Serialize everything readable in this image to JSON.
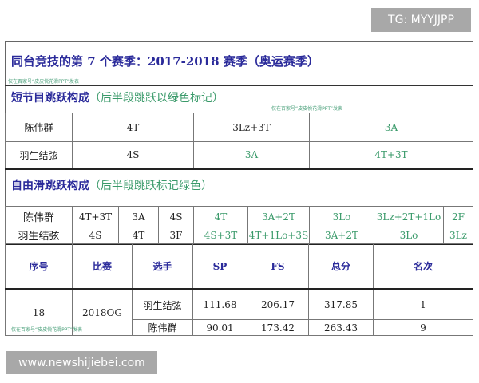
{
  "watermark_top": "TG: MYYJJPP",
  "watermark_bottom": "www.newshijiebei.com",
  "doc_watermark": "仅在百家号“皮皮悦花滑PPT”发表",
  "title": "同台竞技的第 7 个赛季：2017-2018 赛季（奥运赛季）",
  "short": {
    "heading": "短节目跳跃构成",
    "note": "（后半段跳跃以绿色标记）",
    "rows": [
      {
        "name": "陈伟群",
        "jumps": [
          "4T",
          "3Lz+3T",
          "3A"
        ]
      },
      {
        "name": "羽生结弦",
        "jumps": [
          "4S",
          "3A",
          "4T+3T"
        ]
      }
    ]
  },
  "free": {
    "heading": "自由滑跳跃构成",
    "note": "（后半段跳跃标记绿色）",
    "rows": [
      {
        "name": "陈伟群",
        "jumps": [
          "4T+3T",
          "3A",
          "4S",
          "4T",
          "3A+2T",
          "3Lo",
          "3Lz+2T+1Lo",
          "2F"
        ]
      },
      {
        "name": "羽生结弦",
        "jumps": [
          "4S",
          "4T",
          "3F",
          "4S+3T",
          "4T+1Lo+3S",
          "3A+2T",
          "3Lo",
          "3Lz"
        ]
      }
    ]
  },
  "results": {
    "headers": [
      "序号",
      "比赛",
      "选手",
      "SP",
      "FS",
      "总分",
      "名次"
    ],
    "no": "18",
    "event": "2018OG",
    "rows": [
      {
        "skater": "羽生结弦",
        "sp": "111.68",
        "fs": "206.17",
        "total": "317.85",
        "rank": "1"
      },
      {
        "skater": "陈伟群",
        "sp": "90.01",
        "fs": "173.42",
        "total": "263.43",
        "rank": "9"
      }
    ]
  },
  "colors": {
    "title": "#2a2a9a",
    "second_half": "#3a9a6a"
  }
}
